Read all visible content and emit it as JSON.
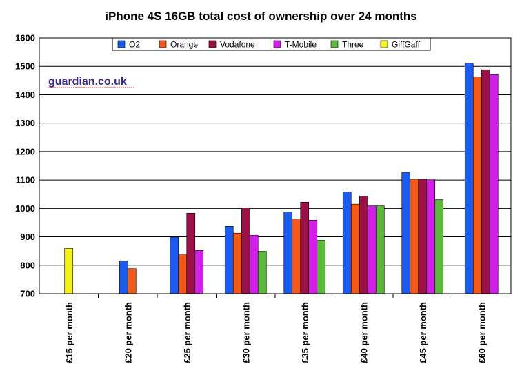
{
  "chart_data": {
    "type": "bar",
    "title": "iPhone 4S 16GB total cost of ownership over 24 months",
    "xlabel": "",
    "ylabel": "",
    "ylim": [
      700,
      1600
    ],
    "yticks": [
      700,
      800,
      900,
      1000,
      1100,
      1200,
      1300,
      1400,
      1500,
      1600
    ],
    "grid": true,
    "legend_position": "top",
    "categories": [
      "£15 per month",
      "£20 per month",
      "£25 per month",
      "£30 per month",
      "£35 per month",
      "£40 per month",
      "£45 per month",
      "£60 per month"
    ],
    "series": [
      {
        "name": "O2",
        "color": "#1a5cf2",
        "values": [
          null,
          815,
          899,
          937,
          988,
          1058,
          1127,
          1511
        ]
      },
      {
        "name": "Orange",
        "color": "#f25a1a",
        "values": [
          null,
          788,
          839,
          913,
          963,
          1015,
          1103,
          1463
        ]
      },
      {
        "name": "Vodafone",
        "color": "#9b1046",
        "values": [
          null,
          null,
          983,
          1002,
          1022,
          1043,
          1103,
          1488
        ]
      },
      {
        "name": "T-Mobile",
        "color": "#d11ee8",
        "values": [
          null,
          null,
          852,
          905,
          959,
          1009,
          1101,
          1471
        ]
      },
      {
        "name": "Three",
        "color": "#5cb83a",
        "values": [
          null,
          null,
          null,
          849,
          888,
          1009,
          1031,
          null
        ]
      },
      {
        "name": "GiffGaff",
        "color": "#f5f21a",
        "values": [
          859,
          null,
          null,
          null,
          null,
          null,
          null,
          null
        ]
      }
    ],
    "annotation": "guardian.co.uk"
  }
}
